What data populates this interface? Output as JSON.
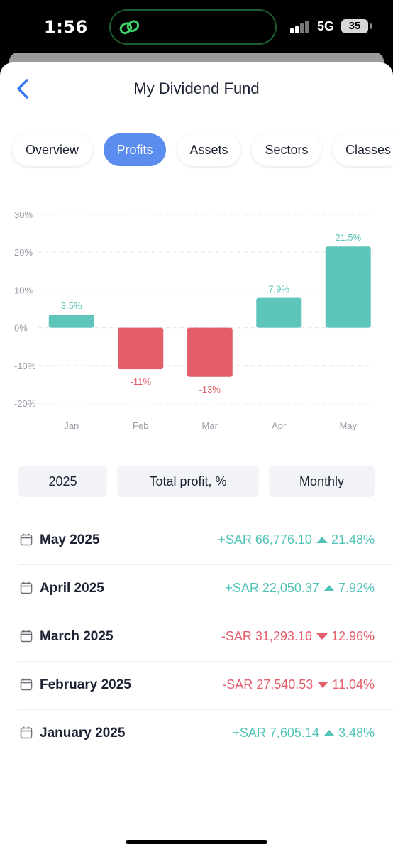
{
  "status_bar": {
    "time": "1:56",
    "network": "5G",
    "battery": "35"
  },
  "nav": {
    "title": "My Dividend Fund"
  },
  "tabs": [
    {
      "label": "Overview",
      "active": false
    },
    {
      "label": "Profits",
      "active": true
    },
    {
      "label": "Assets",
      "active": false
    },
    {
      "label": "Sectors",
      "active": false
    },
    {
      "label": "Classes",
      "active": false
    }
  ],
  "chart_data": {
    "type": "bar",
    "categories": [
      "Jan",
      "Feb",
      "Mar",
      "Apr",
      "May"
    ],
    "values": [
      3.5,
      -11,
      -13,
      7.9,
      21.5
    ],
    "data_labels": [
      "3.5%",
      "-11%",
      "-13%",
      "7.9%",
      "21.5%"
    ],
    "y_ticks": [
      30,
      20,
      10,
      0,
      -10,
      -20
    ],
    "y_tick_labels": [
      "30%",
      "20%",
      "10%",
      "0%",
      "-10%",
      "-20%"
    ],
    "ylim": [
      -20,
      30
    ],
    "grid": true,
    "colors": {
      "positive": "#5ec5ba",
      "negative": "#e35d6a"
    }
  },
  "filters": {
    "year": "2025",
    "metric": "Total profit, %",
    "period": "Monthly"
  },
  "rows": [
    {
      "month": "May 2025",
      "amount": "+SAR 66,776.10",
      "percent": "21.48%",
      "direction": "up"
    },
    {
      "month": "April 2025",
      "amount": "+SAR 22,050.37",
      "percent": "7.92%",
      "direction": "up"
    },
    {
      "month": "March 2025",
      "amount": "-SAR 31,293.16",
      "percent": "12.96%",
      "direction": "down"
    },
    {
      "month": "February 2025",
      "amount": "-SAR 27,540.53",
      "percent": "11.04%",
      "direction": "down"
    },
    {
      "month": "January 2025",
      "amount": "+SAR 7,605.14",
      "percent": "3.48%",
      "direction": "up"
    }
  ],
  "icons": {
    "back": "chevron-left-icon",
    "calendar": "calendar-icon",
    "app": "link-icon"
  }
}
